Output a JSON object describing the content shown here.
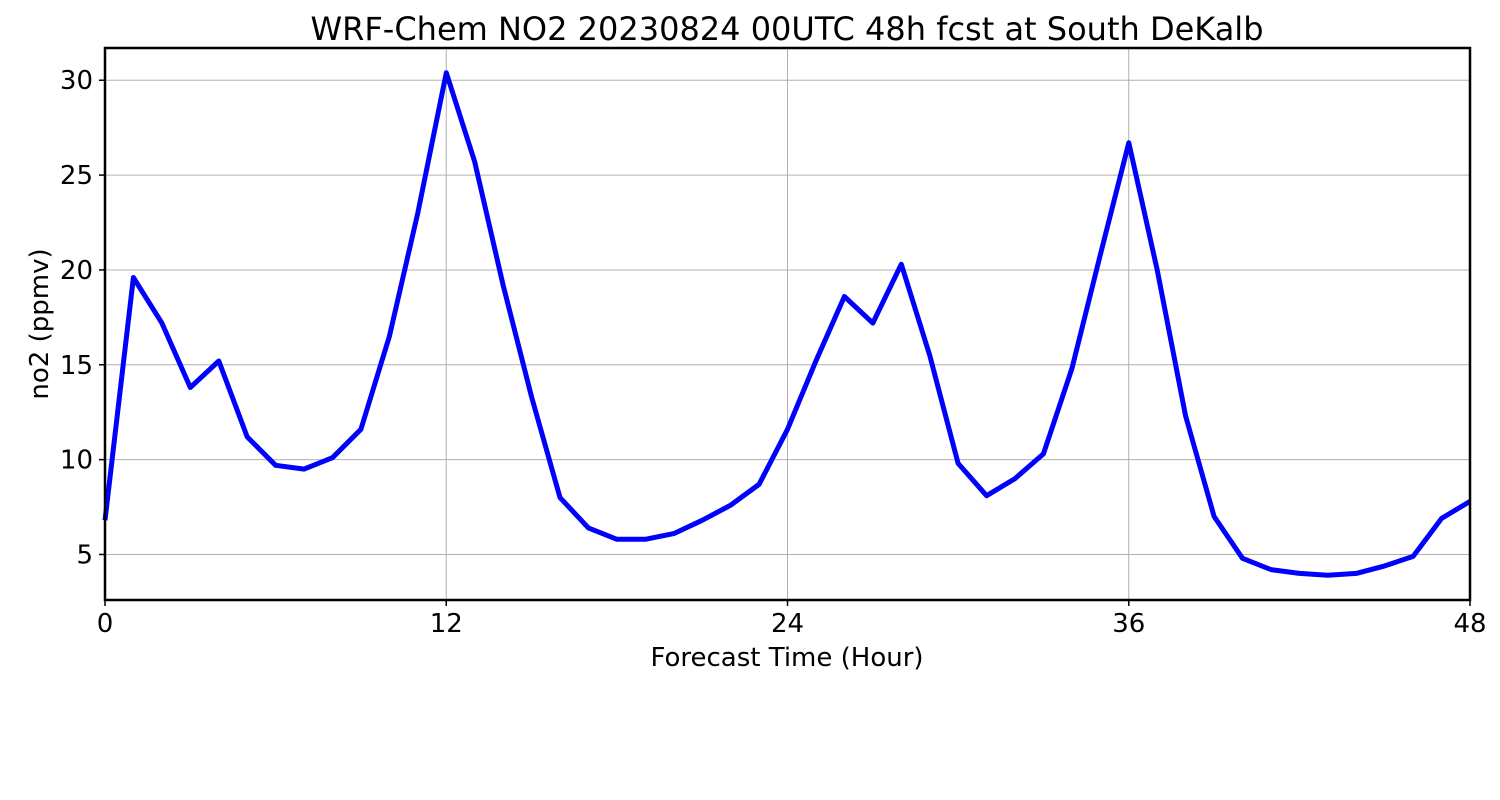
{
  "chart_data": {
    "type": "line",
    "title": "WRF-Chem NO2  20230824 00UTC 48h fcst at South DeKalb",
    "xlabel": "Forecast Time (Hour)",
    "ylabel": "no2  (ppmv)",
    "xlim": [
      0,
      48
    ],
    "ylim": [
      2.6,
      31.7
    ],
    "xticks": [
      0,
      12,
      24,
      36,
      48
    ],
    "yticks": [
      5,
      10,
      15,
      20,
      25,
      30
    ],
    "grid": true,
    "series": [
      {
        "color": "#0000ff",
        "x": [
          0,
          1,
          2,
          3,
          4,
          5,
          6,
          7,
          8,
          9,
          10,
          11,
          12,
          13,
          14,
          15,
          16,
          17,
          18,
          19,
          20,
          21,
          22,
          23,
          24,
          25,
          26,
          27,
          28,
          29,
          30,
          31,
          32,
          33,
          34,
          35,
          36,
          37,
          38,
          39,
          40,
          41,
          42,
          43,
          44,
          45,
          46,
          47,
          48
        ],
        "y": [
          6.8,
          19.6,
          17.2,
          13.8,
          15.2,
          11.2,
          9.7,
          9.5,
          10.1,
          11.6,
          16.5,
          23.0,
          30.4,
          25.7,
          19.2,
          13.3,
          8.0,
          6.4,
          5.8,
          5.8,
          6.1,
          6.8,
          7.6,
          8.7,
          11.6,
          15.2,
          18.6,
          17.2,
          20.3,
          15.5,
          9.8,
          8.1,
          9.0,
          10.3,
          14.8,
          20.8,
          26.7,
          20.0,
          12.3,
          7.0,
          4.8,
          4.2,
          4.0,
          3.9,
          4.0,
          4.4,
          4.9,
          6.9,
          7.8
        ]
      }
    ]
  }
}
